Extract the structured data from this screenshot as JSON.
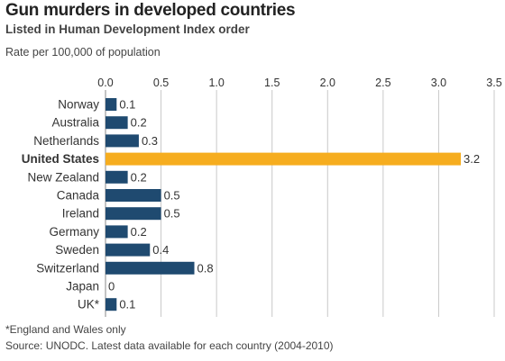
{
  "title": "Gun murders in developed countries",
  "subtitle": "Listed in Human Development Index order",
  "unit_label": "Rate per 100,000 of population",
  "footnote": "*England and Wales only",
  "source": "Source: UNODC. Latest data available for each country (2004-2010)",
  "colors": {
    "bar": "#1f4a70",
    "highlight": "#f6ad1f",
    "grid": "#c8c8c8",
    "axis": "#888888"
  },
  "chart_data": {
    "type": "bar",
    "orientation": "horizontal",
    "categories": [
      "Norway",
      "Australia",
      "Netherlands",
      "United States",
      "New Zealand",
      "Canada",
      "Ireland",
      "Germany",
      "Sweden",
      "Switzerland",
      "Japan",
      "UK*"
    ],
    "values": [
      0.1,
      0.2,
      0.3,
      3.2,
      0.2,
      0.5,
      0.5,
      0.2,
      0.4,
      0.8,
      0,
      0.1
    ],
    "value_labels": [
      "0.1",
      "0.2",
      "0.3",
      "3.2",
      "0.2",
      "0.5",
      "0.5",
      "0.2",
      "0.4",
      "0.8",
      "0",
      "0.1"
    ],
    "highlight": "United States",
    "xlim": [
      0,
      3.5
    ],
    "xticks": [
      0,
      0.5,
      1,
      1.5,
      2,
      2.5,
      3,
      3.5
    ],
    "xtick_labels": [
      "0.0",
      "0.5",
      "1.0",
      "1.5",
      "2.0",
      "2.5",
      "3.0",
      "3.5"
    ],
    "xaxis_position": "top",
    "grid": true,
    "title": "Gun murders in developed countries",
    "xlabel": "Rate per 100,000 of population",
    "ylabel": ""
  }
}
